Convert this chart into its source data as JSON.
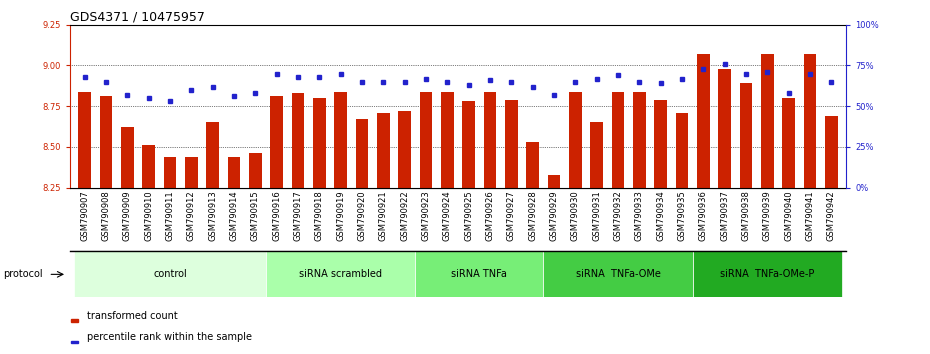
{
  "title": "GDS4371 / 10475957",
  "samples": [
    "GSM790907",
    "GSM790908",
    "GSM790909",
    "GSM790910",
    "GSM790911",
    "GSM790912",
    "GSM790913",
    "GSM790914",
    "GSM790915",
    "GSM790916",
    "GSM790917",
    "GSM790918",
    "GSM790919",
    "GSM790920",
    "GSM790921",
    "GSM790922",
    "GSM790923",
    "GSM790924",
    "GSM790925",
    "GSM790926",
    "GSM790927",
    "GSM790928",
    "GSM790929",
    "GSM790930",
    "GSM790931",
    "GSM790932",
    "GSM790933",
    "GSM790934",
    "GSM790935",
    "GSM790936",
    "GSM790937",
    "GSM790938",
    "GSM790939",
    "GSM790940",
    "GSM790941",
    "GSM790942"
  ],
  "bar_values": [
    8.84,
    8.81,
    8.62,
    8.51,
    8.44,
    8.44,
    8.65,
    8.44,
    8.46,
    8.81,
    8.83,
    8.8,
    8.84,
    8.67,
    8.71,
    8.72,
    8.84,
    8.84,
    8.78,
    8.84,
    8.79,
    8.53,
    8.33,
    8.84,
    8.65,
    8.84,
    8.84,
    8.79,
    8.71,
    9.07,
    8.98,
    8.89,
    9.07,
    8.8,
    9.07,
    8.69
  ],
  "percentile_values": [
    68,
    65,
    57,
    55,
    53,
    60,
    62,
    56,
    58,
    70,
    68,
    68,
    70,
    65,
    65,
    65,
    67,
    65,
    63,
    66,
    65,
    62,
    57,
    65,
    67,
    69,
    65,
    64,
    67,
    73,
    76,
    70,
    71,
    58,
    70,
    65
  ],
  "groups": [
    {
      "label": "control",
      "start": 0,
      "end": 9,
      "color": "#ddffdd"
    },
    {
      "label": "siRNA scrambled",
      "start": 9,
      "end": 16,
      "color": "#aaffaa"
    },
    {
      "label": "siRNA TNFa",
      "start": 16,
      "end": 22,
      "color": "#77ee77"
    },
    {
      "label": "siRNA  TNFa-OMe",
      "start": 22,
      "end": 29,
      "color": "#44cc44"
    },
    {
      "label": "siRNA  TNFa-OMe-P",
      "start": 29,
      "end": 36,
      "color": "#22aa22"
    }
  ],
  "ylim_left": [
    8.25,
    9.25
  ],
  "ylim_right": [
    0,
    100
  ],
  "yticks_left": [
    8.25,
    8.5,
    8.75,
    9.0,
    9.25
  ],
  "yticks_right": [
    0,
    25,
    50,
    75,
    100
  ],
  "ytick_labels_right": [
    "0%",
    "25%",
    "50%",
    "75%",
    "100%"
  ],
  "grid_lines": [
    8.5,
    8.75,
    9.0
  ],
  "bar_color": "#cc2200",
  "dot_color": "#2222cc",
  "xtick_bg": "#dddddd",
  "title_fontsize": 9,
  "tick_fontsize": 6,
  "group_fontsize": 7,
  "legend_fontsize": 7
}
